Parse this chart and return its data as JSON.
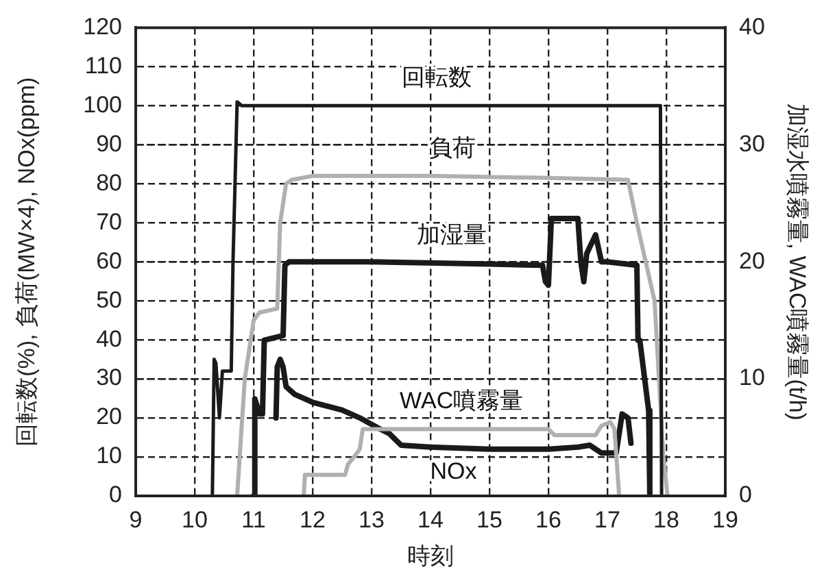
{
  "chart_data": {
    "type": "line",
    "xlabel": "時刻",
    "ylabel": "回転数(%), 負荷(MW×4), NOx(ppm)",
    "y2label": "加湿水噴霧量, WAC噴霧量(t/h)",
    "xlim": [
      9,
      19
    ],
    "xticks": [
      9,
      10,
      11,
      12,
      13,
      14,
      15,
      16,
      17,
      18,
      19
    ],
    "ylim": [
      0,
      120
    ],
    "yticks": [
      0,
      10,
      20,
      30,
      40,
      50,
      60,
      70,
      80,
      90,
      100,
      110,
      120
    ],
    "y2lim": [
      0,
      40
    ],
    "y2ticks": [
      0,
      10,
      20,
      30,
      40
    ],
    "grid": true,
    "line_style": "solid",
    "marker": "none",
    "series": [
      {
        "name": "回転数",
        "color": "#1a1a1a",
        "x": [
          10.3,
          10.33,
          10.36,
          10.42,
          10.47,
          10.62,
          10.65,
          10.72,
          10.8,
          12,
          14,
          16,
          17.9,
          17.92
        ],
        "values": [
          0,
          35,
          34,
          20,
          32,
          32,
          60,
          101,
          100,
          100,
          100,
          100,
          100,
          0
        ]
      },
      {
        "name": "負荷",
        "color": "#b0b0b0",
        "x": [
          10.72,
          10.85,
          11.0,
          11.1,
          11.4,
          11.45,
          11.55,
          11.65,
          12,
          14,
          16,
          17.35,
          17.5,
          17.8,
          17.95,
          18.02
        ],
        "values": [
          0,
          30,
          45,
          47,
          48,
          70,
          80,
          81,
          82,
          82,
          81.5,
          81,
          70,
          50,
          10,
          0
        ]
      },
      {
        "name": "加湿量",
        "color": "#1a1a1a",
        "axis": "y2",
        "x": [
          11.0,
          11.02,
          11.1,
          11.15,
          11.18,
          11.5,
          11.53,
          11.6,
          13,
          15,
          15.9,
          15.95,
          16.0,
          16.05,
          16.5,
          16.55,
          16.6,
          16.65,
          16.8,
          16.9,
          17.0,
          17.5,
          17.52,
          17.55,
          17.7,
          17.72
        ],
        "values": [
          0,
          8.3,
          7,
          7,
          13.3,
          13.7,
          19.7,
          20,
          20,
          19.8,
          19.7,
          18.3,
          18,
          23.7,
          23.7,
          20,
          18.3,
          20.7,
          22.3,
          20,
          20,
          19.7,
          13.3,
          13.3,
          7.3,
          0
        ]
      },
      {
        "name": "WAC噴霧量",
        "color": "#b0b0b0",
        "axis": "y2",
        "x": [
          11.85,
          11.87,
          12.55,
          12.6,
          12.7,
          12.8,
          12.85,
          13.0,
          16.0,
          16.1,
          16.8,
          16.9,
          17.05,
          17.12,
          17.2
        ],
        "values": [
          0,
          1.8,
          1.8,
          2.7,
          3.3,
          4,
          5.7,
          5.7,
          5.7,
          5.2,
          5.2,
          6,
          6.3,
          5.7,
          0
        ]
      },
      {
        "name": "NOx",
        "color": "#1a1a1a",
        "x": [
          11.38,
          11.4,
          11.45,
          11.5,
          11.55,
          11.7,
          12,
          12.5,
          12.8,
          13.1,
          13.3,
          13.5,
          14,
          15,
          16,
          16.5,
          16.7,
          16.9,
          17.15,
          17.25,
          17.35,
          17.4
        ],
        "values": [
          20,
          33,
          35,
          33,
          28,
          26,
          24,
          22,
          20,
          17.5,
          16,
          13,
          12.5,
          12,
          12,
          12.5,
          13,
          11,
          11,
          21,
          20,
          13.5
        ]
      }
    ]
  }
}
